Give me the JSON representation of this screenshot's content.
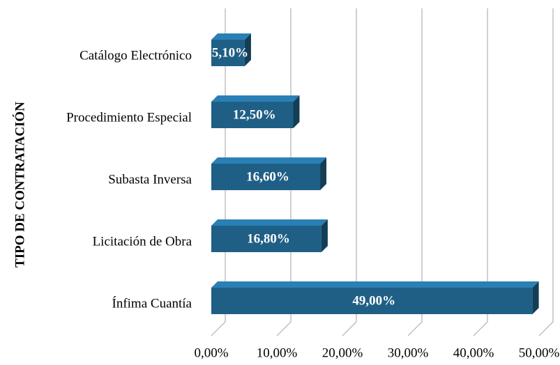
{
  "chart_data": {
    "type": "bar3d_horizontal",
    "y_axis_label": "TIPO DE CONTRATACIÓN",
    "categories": [
      "Catálogo Electrónico",
      "Procedimiento Especial",
      "Subasta Inversa",
      "Licitación de Obra",
      "Ínfima Cuantía"
    ],
    "values": [
      5.1,
      12.5,
      16.6,
      16.8,
      49.0
    ],
    "value_labels": [
      "5,10%",
      "12,50%",
      "16,60%",
      "16,80%",
      "49,00%"
    ],
    "color": "#1f5f85",
    "xlim": [
      0,
      50
    ],
    "xticks": [
      {
        "value": 0,
        "label": "0,00%"
      },
      {
        "value": 10,
        "label": "10,00%"
      },
      {
        "value": 20,
        "label": "20,00%"
      },
      {
        "value": 30,
        "label": "30,00%"
      },
      {
        "value": 40,
        "label": "40,00%"
      },
      {
        "value": 50,
        "label": "50,00%"
      }
    ],
    "grid": true
  }
}
